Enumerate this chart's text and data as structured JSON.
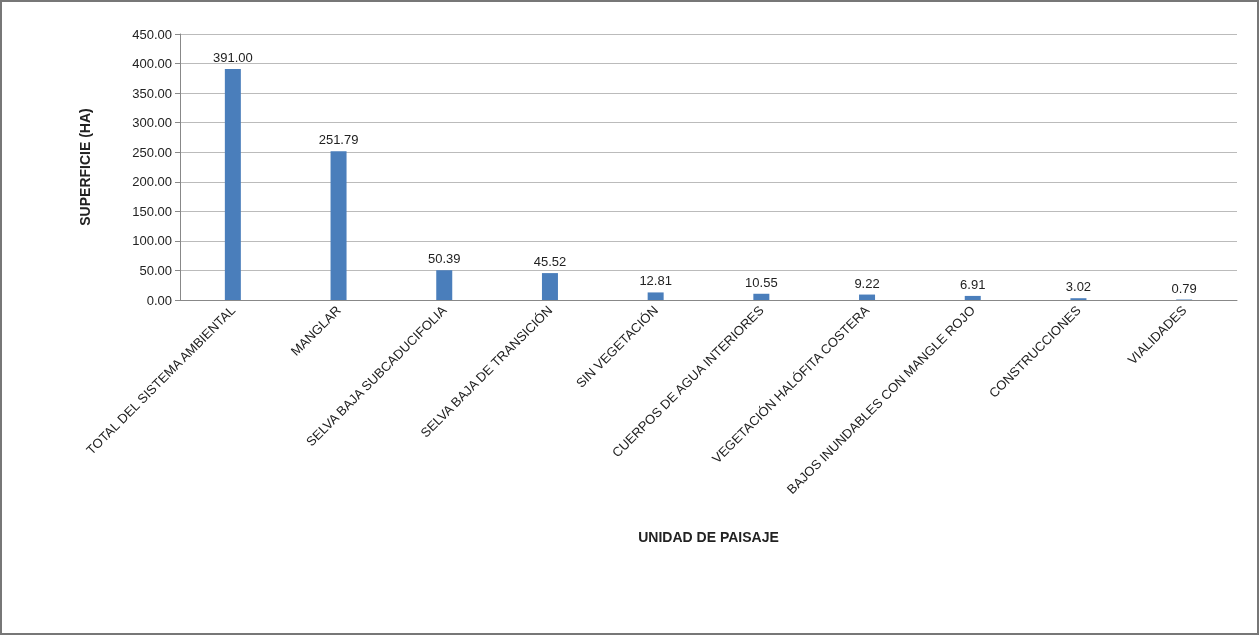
{
  "chart_data": {
    "type": "bar",
    "xlabel": "UNIDAD DE PAISAJE",
    "ylabel": "SUPERFICIE (HA)",
    "categories": [
      "TOTAL DEL SISTEMA AMBIENTAL",
      "MANGLAR",
      "SELVA BAJA SUBCADUCIFOLIA",
      "SELVA BAJA DE TRANSICIÓN",
      "SIN VEGETACIÓN",
      "CUERPOS DE AGUA INTERIORES",
      "VEGETACIÓN HALÓFITA COSTERA",
      "BAJOS INUNDABLES CON MANGLE ROJO",
      "CONSTRUCCIONES",
      "VIALIDADES"
    ],
    "values": [
      391,
      251.79,
      50.39,
      45.52,
      12.81,
      10.55,
      9.22,
      6.91,
      3.02,
      0.79
    ],
    "value_labels": [
      "391.00",
      "251.79",
      "50.39",
      "45.52",
      "12.81",
      "10.55",
      "9.22",
      "6.91",
      "3.02",
      "0.79"
    ],
    "color": "#4a7ebb",
    "ylim": [
      0,
      450
    ],
    "yticks": [
      {
        "value": 0,
        "label": "0.00"
      },
      {
        "value": 50,
        "label": "50.00"
      },
      {
        "value": 100,
        "label": "100.00"
      },
      {
        "value": 150,
        "label": "150.00"
      },
      {
        "value": 200,
        "label": "200.00"
      },
      {
        "value": 250,
        "label": "250.00"
      },
      {
        "value": 300,
        "label": "300.00"
      },
      {
        "value": 350,
        "label": "350.00"
      },
      {
        "value": 400,
        "label": "400.00"
      },
      {
        "value": 450,
        "label": "450.00"
      }
    ],
    "grid": "y"
  }
}
